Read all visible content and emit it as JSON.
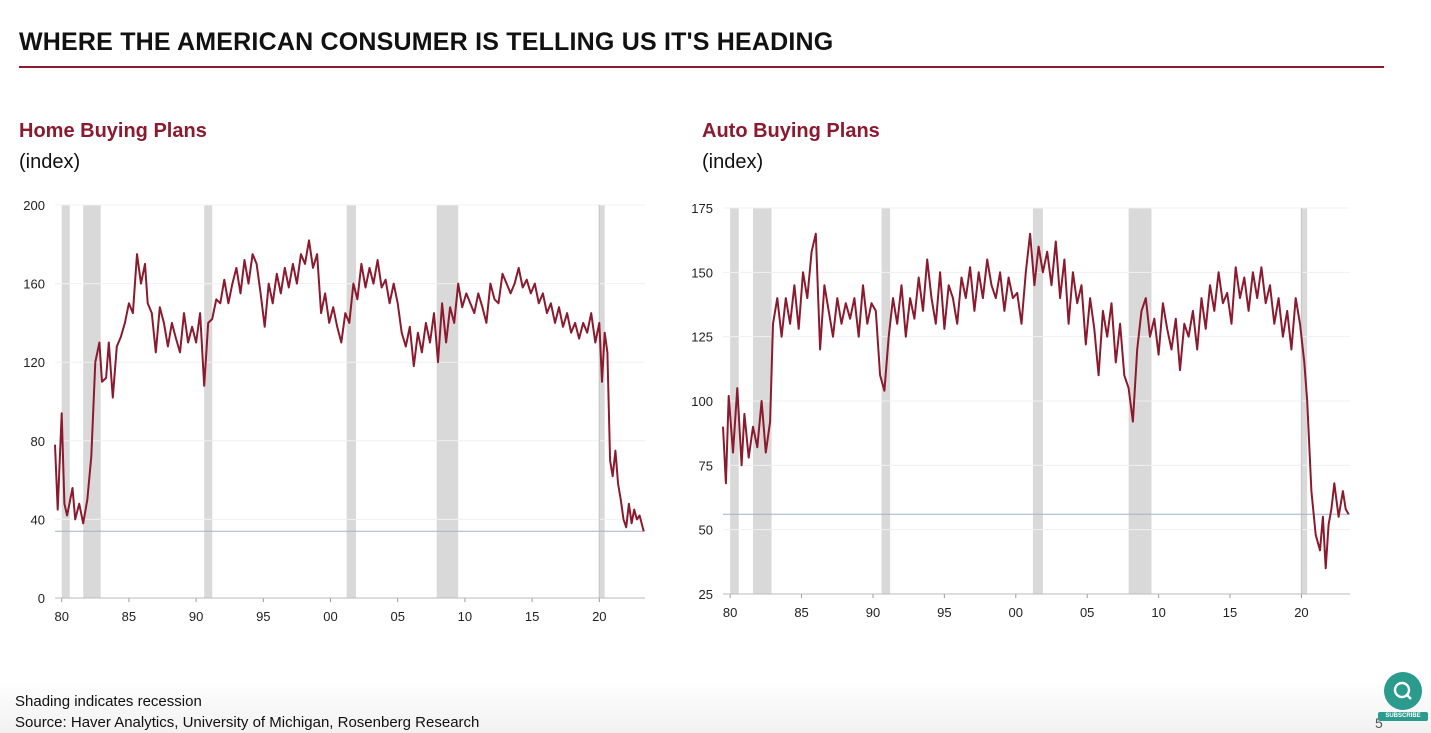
{
  "slide": {
    "title": "WHERE THE AMERICAN CONSUMER IS TELLING US IT'S HEADING",
    "footer_note": "Shading indicates recession",
    "footer_source": "Source: Haver Analytics, University of Michigan, Rosenberg Research",
    "page_number": "5",
    "subscribe_label": "SUBSCRIBE",
    "colors": {
      "accent": "#8b1a2e",
      "recession": "#d9d9d9",
      "reference_line": "#9fb3c8"
    }
  },
  "chart_data": [
    {
      "type": "line",
      "title": "Home Buying Plans",
      "unit": "(index)",
      "x_ticks": [
        "80",
        "85",
        "90",
        "95",
        "00",
        "05",
        "10",
        "15",
        "20"
      ],
      "y_ticks": [
        "0",
        "40",
        "80",
        "120",
        "160",
        "200"
      ],
      "xlim": [
        1979.5,
        2023.4
      ],
      "ylim": [
        0,
        200
      ],
      "recessions": [
        [
          1980.0,
          1980.6
        ],
        [
          1981.6,
          1982.9
        ],
        [
          1990.6,
          1991.2
        ],
        [
          2001.2,
          2001.9
        ],
        [
          2007.9,
          2009.5
        ],
        [
          2020.0,
          2020.4
        ]
      ],
      "reference_line": 34,
      "series": [
        {
          "color": "#8b1a2e",
          "x": [
            1979.5,
            1979.7,
            1980.0,
            1980.2,
            1980.4,
            1980.8,
            1981.0,
            1981.3,
            1981.6,
            1981.9,
            1982.2,
            1982.5,
            1982.8,
            1983.0,
            1983.3,
            1983.5,
            1983.8,
            1984.1,
            1984.4,
            1984.7,
            1985.0,
            1985.3,
            1985.6,
            1985.9,
            1986.2,
            1986.4,
            1986.7,
            1987.0,
            1987.3,
            1987.6,
            1987.9,
            1988.2,
            1988.5,
            1988.8,
            1989.1,
            1989.4,
            1989.7,
            1990.0,
            1990.3,
            1990.6,
            1990.9,
            1991.2,
            1991.5,
            1991.8,
            1992.1,
            1992.4,
            1992.7,
            1993.0,
            1993.3,
            1993.6,
            1993.9,
            1994.2,
            1994.5,
            1994.8,
            1995.1,
            1995.4,
            1995.7,
            1996.0,
            1996.3,
            1996.6,
            1996.9,
            1997.2,
            1997.5,
            1997.8,
            1998.1,
            1998.4,
            1998.7,
            1999.0,
            1999.3,
            1999.6,
            1999.9,
            2000.2,
            2000.5,
            2000.8,
            2001.1,
            2001.4,
            2001.7,
            2002.0,
            2002.3,
            2002.6,
            2002.9,
            2003.2,
            2003.5,
            2003.8,
            2004.1,
            2004.4,
            2004.7,
            2005.0,
            2005.3,
            2005.6,
            2005.9,
            2006.2,
            2006.5,
            2006.8,
            2007.1,
            2007.4,
            2007.7,
            2008.0,
            2008.3,
            2008.6,
            2008.9,
            2009.2,
            2009.5,
            2009.8,
            2010.1,
            2010.4,
            2010.7,
            2011.0,
            2011.3,
            2011.6,
            2011.9,
            2012.2,
            2012.5,
            2012.8,
            2013.1,
            2013.4,
            2013.7,
            2014.0,
            2014.3,
            2014.6,
            2014.9,
            2015.2,
            2015.5,
            2015.8,
            2016.1,
            2016.4,
            2016.7,
            2017.0,
            2017.3,
            2017.6,
            2017.9,
            2018.2,
            2018.5,
            2018.8,
            2019.1,
            2019.4,
            2019.7,
            2020.0,
            2020.2,
            2020.4,
            2020.6,
            2020.8,
            2021.0,
            2021.2,
            2021.4,
            2021.6,
            2021.8,
            2022.0,
            2022.2,
            2022.4,
            2022.6,
            2022.8,
            2023.0,
            2023.3
          ],
          "values": [
            78,
            45,
            94,
            48,
            42,
            56,
            40,
            48,
            38,
            50,
            72,
            120,
            130,
            110,
            112,
            130,
            102,
            128,
            133,
            140,
            150,
            145,
            175,
            160,
            170,
            150,
            145,
            125,
            148,
            140,
            128,
            140,
            132,
            125,
            145,
            130,
            138,
            130,
            145,
            108,
            140,
            142,
            152,
            150,
            162,
            150,
            160,
            168,
            155,
            172,
            160,
            175,
            170,
            155,
            138,
            160,
            150,
            165,
            155,
            168,
            158,
            170,
            160,
            175,
            170,
            182,
            168,
            175,
            145,
            155,
            140,
            148,
            138,
            130,
            145,
            140,
            160,
            152,
            170,
            158,
            168,
            160,
            172,
            158,
            162,
            150,
            160,
            150,
            135,
            128,
            138,
            118,
            135,
            125,
            140,
            130,
            145,
            120,
            150,
            130,
            148,
            140,
            160,
            148,
            155,
            150,
            145,
            155,
            148,
            140,
            160,
            152,
            150,
            165,
            160,
            155,
            160,
            168,
            158,
            162,
            155,
            160,
            150,
            155,
            145,
            150,
            140,
            148,
            138,
            145,
            135,
            140,
            132,
            140,
            135,
            145,
            130,
            140,
            110,
            135,
            125,
            70,
            62,
            75,
            58,
            50,
            40,
            36,
            48,
            38,
            45,
            40,
            42,
            34
          ]
        }
      ]
    },
    {
      "type": "line",
      "title": "Auto Buying Plans",
      "unit": "(index)",
      "x_ticks": [
        "80",
        "85",
        "90",
        "95",
        "00",
        "05",
        "10",
        "15",
        "20"
      ],
      "y_ticks": [
        "25",
        "50",
        "75",
        "100",
        "125",
        "150",
        "175"
      ],
      "xlim": [
        1979.5,
        2023.4
      ],
      "ylim": [
        25,
        175
      ],
      "recessions": [
        [
          1980.0,
          1980.6
        ],
        [
          1981.6,
          1982.9
        ],
        [
          1990.6,
          1991.2
        ],
        [
          2001.2,
          2001.9
        ],
        [
          2007.9,
          2009.5
        ],
        [
          2020.0,
          2020.4
        ]
      ],
      "reference_line": 56,
      "series": [
        {
          "color": "#8b1a2e",
          "x": [
            1979.5,
            1979.7,
            1979.9,
            1980.2,
            1980.5,
            1980.8,
            1981.0,
            1981.3,
            1981.6,
            1981.9,
            1982.2,
            1982.5,
            1982.8,
            1983.0,
            1983.3,
            1983.6,
            1983.9,
            1984.2,
            1984.5,
            1984.8,
            1985.1,
            1985.4,
            1985.7,
            1986.0,
            1986.3,
            1986.6,
            1986.9,
            1987.2,
            1987.5,
            1987.8,
            1988.1,
            1988.4,
            1988.7,
            1989.0,
            1989.3,
            1989.6,
            1989.9,
            1990.2,
            1990.5,
            1990.8,
            1991.1,
            1991.4,
            1991.7,
            1992.0,
            1992.3,
            1992.6,
            1992.9,
            1993.2,
            1993.5,
            1993.8,
            1994.1,
            1994.4,
            1994.7,
            1995.0,
            1995.3,
            1995.6,
            1995.9,
            1996.2,
            1996.5,
            1996.8,
            1997.1,
            1997.4,
            1997.7,
            1998.0,
            1998.3,
            1998.6,
            1998.9,
            1999.2,
            1999.5,
            1999.8,
            2000.1,
            2000.4,
            2000.7,
            2001.0,
            2001.3,
            2001.6,
            2001.9,
            2002.2,
            2002.5,
            2002.8,
            2003.1,
            2003.4,
            2003.7,
            2004.0,
            2004.3,
            2004.6,
            2004.9,
            2005.2,
            2005.5,
            2005.8,
            2006.1,
            2006.4,
            2006.7,
            2007.0,
            2007.3,
            2007.6,
            2007.9,
            2008.2,
            2008.5,
            2008.8,
            2009.1,
            2009.4,
            2009.7,
            2010.0,
            2010.3,
            2010.6,
            2010.9,
            2011.2,
            2011.5,
            2011.8,
            2012.1,
            2012.4,
            2012.7,
            2013.0,
            2013.3,
            2013.6,
            2013.9,
            2014.2,
            2014.5,
            2014.8,
            2015.1,
            2015.4,
            2015.7,
            2016.0,
            2016.3,
            2016.6,
            2016.9,
            2017.2,
            2017.5,
            2017.8,
            2018.1,
            2018.4,
            2018.7,
            2019.0,
            2019.3,
            2019.6,
            2019.9,
            2020.2,
            2020.4,
            2020.7,
            2021.0,
            2021.3,
            2021.5,
            2021.7,
            2021.9,
            2022.1,
            2022.3,
            2022.6,
            2022.9,
            2023.1,
            2023.3
          ],
          "values": [
            90,
            68,
            102,
            80,
            105,
            75,
            95,
            78,
            90,
            82,
            100,
            80,
            92,
            130,
            140,
            125,
            140,
            130,
            145,
            128,
            150,
            140,
            158,
            165,
            120,
            145,
            135,
            125,
            140,
            130,
            138,
            132,
            140,
            125,
            145,
            130,
            138,
            135,
            110,
            104,
            125,
            140,
            130,
            145,
            125,
            140,
            132,
            148,
            135,
            155,
            140,
            130,
            150,
            128,
            145,
            140,
            130,
            148,
            140,
            152,
            135,
            150,
            140,
            155,
            145,
            140,
            150,
            135,
            148,
            140,
            142,
            130,
            150,
            165,
            145,
            160,
            150,
            158,
            145,
            162,
            140,
            155,
            130,
            150,
            138,
            145,
            122,
            140,
            128,
            110,
            135,
            125,
            138,
            115,
            130,
            110,
            105,
            92,
            120,
            135,
            140,
            125,
            132,
            118,
            138,
            128,
            120,
            132,
            112,
            130,
            125,
            135,
            120,
            140,
            128,
            145,
            135,
            150,
            138,
            142,
            130,
            152,
            140,
            148,
            135,
            150,
            140,
            152,
            138,
            145,
            130,
            140,
            125,
            135,
            120,
            140,
            130,
            115,
            100,
            65,
            48,
            42,
            55,
            35,
            52,
            58,
            68,
            55,
            65,
            58,
            56
          ]
        }
      ]
    }
  ]
}
